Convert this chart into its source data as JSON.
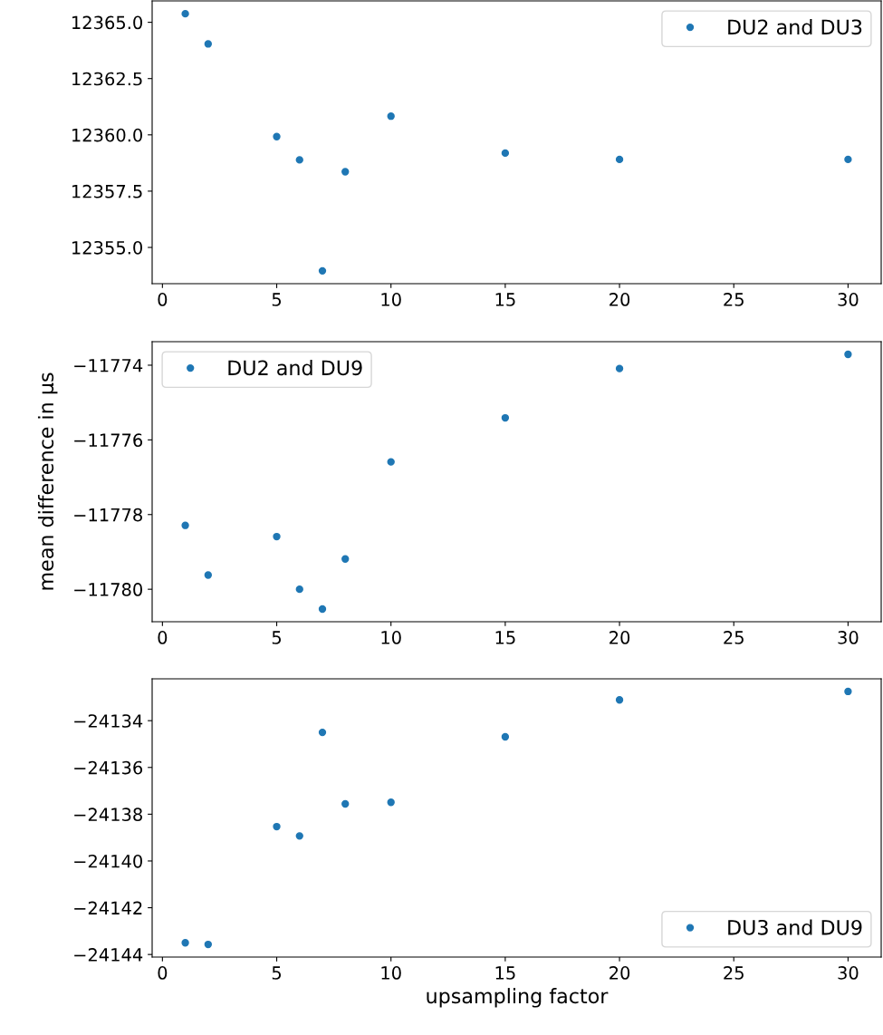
{
  "chart_data": [
    {
      "type": "scatter",
      "x": [
        1,
        2,
        5,
        6,
        7,
        8,
        10,
        15,
        20,
        30
      ],
      "series": [
        {
          "name": "DU2 and DU3",
          "color": "#1f77b4",
          "values": [
            12365.38,
            12364.04,
            12359.92,
            12358.89,
            12353.96,
            12358.36,
            12360.83,
            12359.19,
            12358.91,
            12358.91
          ]
        }
      ],
      "xlim": [
        -0.45,
        31.45
      ],
      "xticks": [
        0,
        5,
        10,
        15,
        20,
        25,
        30
      ],
      "ylim": [
        12353.39,
        12365.95
      ],
      "yticks": [
        {
          "value": 12355,
          "label": "12355.0"
        },
        {
          "value": 12357.5,
          "label": "12357.5"
        },
        {
          "value": 12360,
          "label": "12360.0"
        },
        {
          "value": 12362.5,
          "label": "12362.5"
        },
        {
          "value": 12365,
          "label": "12365.0"
        }
      ],
      "marker": "circle",
      "legend": "top right",
      "grid": false
    },
    {
      "type": "scatter",
      "x": [
        1,
        2,
        5,
        6,
        7,
        8,
        10,
        15,
        20,
        30
      ],
      "ylabel": "mean difference in μs",
      "series": [
        {
          "name": "DU2 and DU9",
          "color": "#1f77b4",
          "values": [
            -11778.29,
            -11779.62,
            -11778.59,
            -11780.0,
            -11780.53,
            -11779.19,
            -11776.59,
            -11775.41,
            -11774.09,
            -11773.71
          ]
        }
      ],
      "xlim": [
        -0.45,
        31.45
      ],
      "xticks": [
        0,
        5,
        10,
        15,
        20,
        25,
        30
      ],
      "ylim": [
        -11780.87,
        -11773.37
      ],
      "yticks": [
        {
          "value": -11780,
          "label": "−11780"
        },
        {
          "value": -11778,
          "label": "−11778"
        },
        {
          "value": -11776,
          "label": "−11776"
        },
        {
          "value": -11774,
          "label": "−11774"
        }
      ],
      "marker": "circle",
      "legend": "top left",
      "grid": false
    },
    {
      "type": "scatter",
      "x": [
        1,
        2,
        5,
        6,
        7,
        8,
        10,
        15,
        20,
        30
      ],
      "xlabel": "upsampling factor",
      "series": [
        {
          "name": "DU3 and DU9",
          "color": "#1f77b4",
          "values": [
            -24143.5,
            -24143.57,
            -24138.53,
            -24138.93,
            -24134.5,
            -24137.56,
            -24137.49,
            -24134.69,
            -24133.11,
            -24132.75
          ]
        }
      ],
      "xlim": [
        -0.45,
        31.45
      ],
      "xticks": [
        0,
        5,
        10,
        15,
        20,
        25,
        30
      ],
      "ylim": [
        -24144.11,
        -24132.21
      ],
      "yticks": [
        {
          "value": -24144,
          "label": "−24144"
        },
        {
          "value": -24142,
          "label": "−24142"
        },
        {
          "value": -24140,
          "label": "−24140"
        },
        {
          "value": -24138,
          "label": "−24138"
        },
        {
          "value": -24136,
          "label": "−24136"
        },
        {
          "value": -24134,
          "label": "−24134"
        }
      ],
      "marker": "circle",
      "legend": "bottom right",
      "grid": false
    }
  ]
}
